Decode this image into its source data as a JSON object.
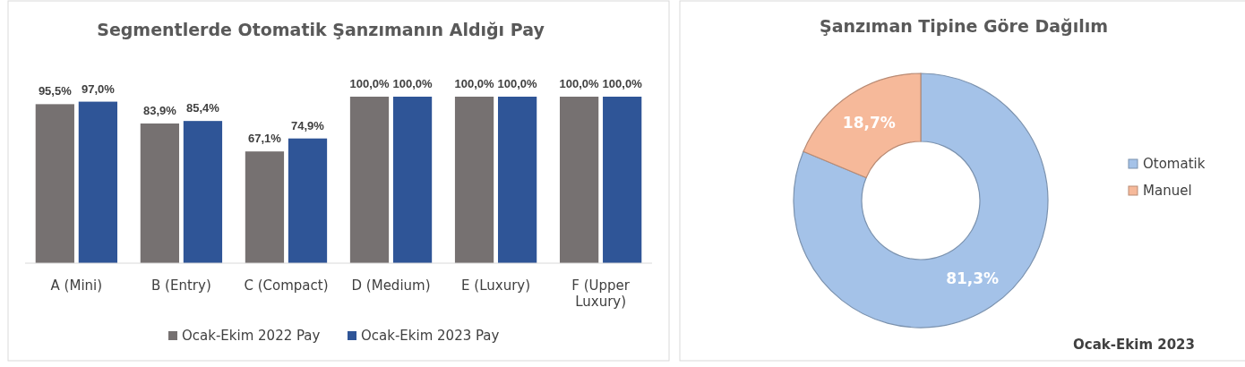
{
  "chart_data": [
    {
      "type": "bar",
      "title": "Segmentlerde Otomatik Şanzımanın Aldığı Pay",
      "categories": [
        "A (Mini)",
        "B (Entry)",
        "C (Compact)",
        "D (Medium)",
        "E (Luxury)",
        "F (Upper Luxury)"
      ],
      "series": [
        {
          "name": "Ocak-Ekim 2022 Pay",
          "color": "#767171",
          "values": [
            95.5,
            83.9,
            67.1,
            100.0,
            100.0,
            100.0
          ],
          "value_labels": [
            "95,5%",
            "83,9%",
            "67,1%",
            "100,0%",
            "100,0%",
            "100,0%"
          ]
        },
        {
          "name": "Ocak-Ekim 2023 Pay",
          "color": "#2f5597",
          "values": [
            97.0,
            85.4,
            74.9,
            100.0,
            100.0,
            100.0
          ],
          "value_labels": [
            "97,0%",
            "85,4%",
            "74,9%",
            "100,0%",
            "100,0%",
            "100,0%"
          ]
        }
      ],
      "legend": "bottom",
      "grid": false
    },
    {
      "type": "donut",
      "title": "Şanzıman Tipine Göre Dağılım",
      "categories": [
        "Otomatik",
        "Manuel"
      ],
      "values": [
        81.3,
        18.7
      ],
      "colors": [
        "#a4c2e8",
        "#f6b99a"
      ],
      "value_labels": [
        "81,3%",
        "18,7%"
      ],
      "legend": "right",
      "annotations": [
        "Ocak-Ekim 2023"
      ]
    }
  ]
}
